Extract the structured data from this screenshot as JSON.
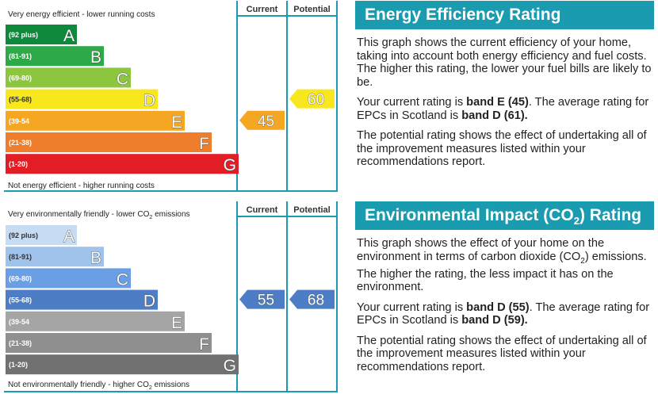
{
  "charts": {
    "energy": {
      "top_label": "Very energy efficient - lower running costs",
      "bottom_label": "Not energy efficient - higher running costs",
      "col_current": "Current",
      "col_potential": "Potential",
      "current": 45,
      "potential": 60,
      "current_color": "#f5a623",
      "potential_color": "#f7e71c"
    },
    "environment": {
      "top_label_pre": "Very environmentally friendly - lower CO",
      "top_label_sub": "2",
      "top_label_post": " emissions",
      "bottom_label_pre": "Not environmentally friendly - higher CO",
      "bottom_label_sub": "2",
      "bottom_label_post": " emissions",
      "col_current": "Current",
      "col_potential": "Potential",
      "current": 55,
      "potential": 68,
      "current_color": "#4d7ec5",
      "potential_color": "#4d7ec5"
    }
  },
  "chart_data": [
    {
      "type": "bar",
      "title": "Energy Efficiency Rating",
      "categories": [
        "A",
        "B",
        "C",
        "D",
        "E",
        "F",
        "G"
      ],
      "ranges": [
        "(92 plus)",
        "(81-91)",
        "(69-80)",
        "(55-68)",
        "(39-54",
        "(21-38)",
        "(1-20)"
      ],
      "colors": [
        "#0f8a3c",
        "#2da94a",
        "#8cc63f",
        "#f7e71c",
        "#f5a623",
        "#ee7d2c",
        "#e31d25"
      ],
      "current": 45,
      "potential": 60
    },
    {
      "type": "bar",
      "title": "Environmental Impact (CO2) Rating",
      "categories": [
        "A",
        "B",
        "C",
        "D",
        "E",
        "F",
        "G"
      ],
      "ranges": [
        "(92 plus)",
        "(81-91)",
        "(69-80)",
        "(55-68)",
        "(39-54",
        "(21-38)",
        "(1-20)"
      ],
      "colors": [
        "#c5dcf3",
        "#a0c3ec",
        "#6a9fe6",
        "#4d7ec5",
        "#a5a5a5",
        "#8f8f8f",
        "#717171"
      ],
      "current": 55,
      "potential": 68
    }
  ],
  "panels": {
    "energy": {
      "title": "Energy Efficiency Rating",
      "p1": "This graph shows the current efficiency of your home, taking into account both energy efficiency and fuel costs. The higher this rating, the lower your fuel bills are likely to be.",
      "p2_a": "Your current rating is ",
      "p2_b": "band E (45)",
      "p2_c": ". The average rating for EPCs in Scotland is ",
      "p2_d": "band D (61).",
      "p3": "The potential rating shows the effect of undertaking all of the improvement measures listed within your recommendations report."
    },
    "environment": {
      "title_pre": "Environmental Impact (CO",
      "title_sub": "2",
      "title_post": ") Rating",
      "p1_a": "This graph shows the effect of your home on the environment in terms of carbon dioxide (CO",
      "p1_sub": "2",
      "p1_b": ") emissions. The higher the rating, the less impact it has on the environment.",
      "p2_a": "Your current rating is ",
      "p2_b": "band D (55)",
      "p2_c": ". The average rating for EPCs in Scotland is ",
      "p2_d": "band D (59).",
      "p3": "The potential rating shows the effect of undertaking all of the improvement measures listed within your recommendations report."
    }
  }
}
